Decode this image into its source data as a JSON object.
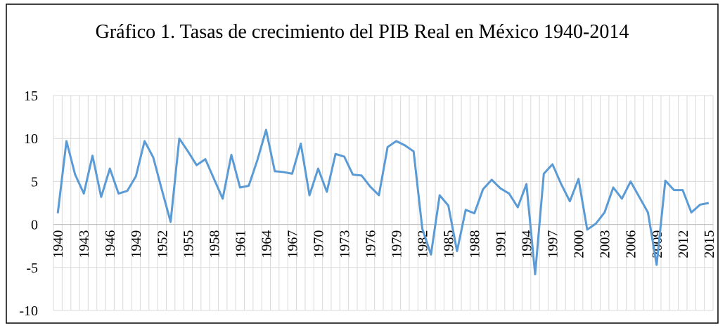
{
  "chart_data": {
    "type": "line",
    "title": "Gráfico 1. Tasas de crecimiento del PIB Real en México 1940-2014",
    "categories": [
      "1940",
      null,
      null,
      "1943",
      null,
      null,
      "1946",
      null,
      null,
      "1949",
      null,
      null,
      "1952",
      null,
      null,
      "1955",
      null,
      null,
      "1958",
      null,
      null,
      "1961",
      null,
      null,
      "1964",
      null,
      null,
      "1967",
      null,
      null,
      "1970",
      null,
      null,
      "1973",
      null,
      null,
      "1976",
      null,
      null,
      "1979",
      null,
      null,
      "1982",
      null,
      null,
      "1985",
      null,
      null,
      "1988",
      null,
      null,
      "1991",
      null,
      null,
      "1994",
      null,
      null,
      "1997",
      null,
      null,
      "2000",
      null,
      null,
      "2003",
      null,
      null,
      "2006",
      null,
      null,
      "2009",
      null,
      null,
      "2012",
      null,
      null,
      "2015"
    ],
    "values": [
      1.3,
      9.7,
      5.8,
      3.6,
      8.0,
      3.2,
      6.5,
      3.6,
      3.9,
      5.6,
      9.7,
      7.8,
      4.0,
      0.3,
      10.0,
      8.5,
      6.9,
      7.6,
      5.3,
      3.0,
      8.1,
      4.3,
      4.5,
      7.5,
      11.0,
      6.2,
      6.1,
      5.9,
      9.4,
      3.4,
      6.5,
      3.8,
      8.2,
      7.9,
      5.8,
      5.7,
      4.4,
      3.4,
      9.0,
      9.7,
      9.2,
      8.5,
      -0.5,
      -3.5,
      3.4,
      2.2,
      -3.1,
      1.7,
      1.3,
      4.1,
      5.2,
      4.2,
      3.6,
      2.0,
      4.7,
      -5.8,
      5.9,
      7.0,
      4.7,
      2.7,
      5.3,
      -0.6,
      0.1,
      1.4,
      4.3,
      3.0,
      5.0,
      3.2,
      1.4,
      -4.7,
      5.1,
      4.0,
      4.0,
      1.4,
      2.3,
      2.5
    ],
    "color": "#5b9bd5",
    "ylim": [
      -10,
      15
    ],
    "yticks": [
      -10,
      -5,
      0,
      5,
      10,
      15
    ],
    "grid": true
  }
}
